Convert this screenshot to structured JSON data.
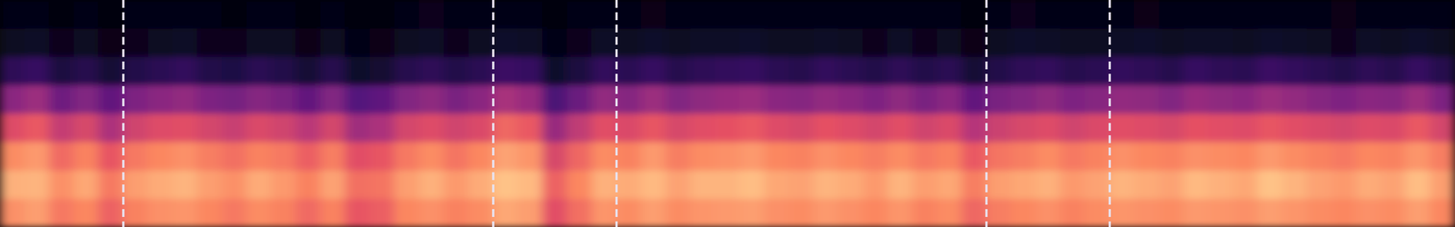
{
  "chart_data": {
    "type": "heatmap",
    "tick_labels": false,
    "xlim": [
      0,
      118
    ],
    "ylim": [
      0,
      8
    ],
    "x": [
      0,
      2,
      4,
      6,
      8,
      10,
      12,
      14,
      16,
      18,
      20,
      22,
      24,
      26,
      28,
      30,
      32,
      34,
      36,
      38,
      40,
      42,
      44,
      46,
      48,
      50,
      52,
      54,
      56,
      58,
      60,
      62,
      64,
      66,
      68,
      70,
      72,
      74,
      76,
      78,
      80,
      82,
      84,
      86,
      88,
      90,
      92,
      94,
      96,
      98,
      100,
      102,
      104,
      106,
      108,
      110,
      112,
      114,
      116
    ],
    "y": [
      0,
      1,
      2,
      3,
      4,
      5,
      6,
      7
    ],
    "value_range": [
      0,
      100
    ],
    "cells": [
      [
        77,
        80,
        72,
        75,
        67,
        74,
        77,
        78,
        75,
        72,
        76,
        74,
        69,
        74,
        64,
        66,
        75,
        77,
        74,
        76,
        82,
        80,
        62,
        70,
        78,
        76,
        80,
        76,
        78,
        79,
        80,
        77,
        76,
        79,
        77,
        75,
        78,
        74,
        76,
        68,
        73,
        75,
        77,
        74,
        76,
        78,
        77,
        76,
        79,
        78,
        77,
        80,
        78,
        76,
        75,
        77,
        76,
        80,
        75
      ],
      [
        84,
        85,
        77,
        82,
        72,
        80,
        83,
        85,
        80,
        77,
        83,
        79,
        74,
        81,
        70,
        71,
        80,
        84,
        79,
        83,
        88,
        86,
        67,
        75,
        84,
        83,
        86,
        81,
        85,
        85,
        87,
        82,
        81,
        85,
        83,
        79,
        85,
        80,
        82,
        73,
        80,
        82,
        84,
        79,
        81,
        85,
        83,
        81,
        86,
        84,
        82,
        88,
        85,
        81,
        79,
        83,
        81,
        87,
        80
      ],
      [
        76,
        79,
        69,
        74,
        64,
        72,
        75,
        77,
        73,
        70,
        74,
        72,
        66,
        73,
        62,
        64,
        72,
        76,
        71,
        75,
        81,
        78,
        59,
        68,
        76,
        74,
        79,
        73,
        76,
        77,
        79,
        75,
        74,
        77,
        75,
        73,
        76,
        72,
        74,
        65,
        71,
        73,
        76,
        72,
        74,
        77,
        75,
        74,
        77,
        76,
        75,
        79,
        76,
        74,
        72,
        75,
        74,
        78,
        73
      ],
      [
        61,
        65,
        54,
        59,
        48,
        57,
        61,
        62,
        58,
        55,
        60,
        57,
        51,
        58,
        45,
        48,
        58,
        61,
        57,
        60,
        68,
        65,
        43,
        53,
        62,
        60,
        64,
        59,
        62,
        63,
        65,
        61,
        59,
        63,
        61,
        58,
        62,
        57,
        60,
        50,
        56,
        59,
        61,
        57,
        60,
        62,
        61,
        59,
        63,
        62,
        61,
        64,
        62,
        60,
        58,
        61,
        60,
        65,
        58
      ],
      [
        40,
        44,
        33,
        38,
        30,
        37,
        40,
        42,
        37,
        35,
        39,
        36,
        30,
        38,
        26,
        29,
        38,
        41,
        36,
        40,
        47,
        43,
        24,
        32,
        42,
        39,
        44,
        38,
        41,
        43,
        44,
        40,
        39,
        42,
        40,
        37,
        41,
        36,
        40,
        30,
        36,
        38,
        41,
        37,
        39,
        42,
        41,
        38,
        43,
        41,
        40,
        44,
        42,
        39,
        37,
        40,
        39,
        44,
        37
      ],
      [
        17,
        19,
        12,
        15,
        10,
        14,
        16,
        18,
        14,
        13,
        16,
        14,
        10,
        15,
        8,
        9,
        15,
        17,
        14,
        16,
        20,
        19,
        8,
        12,
        18,
        16,
        19,
        15,
        17,
        18,
        19,
        16,
        15,
        18,
        16,
        14,
        17,
        14,
        16,
        10,
        14,
        17,
        18,
        15,
        16,
        18,
        17,
        15,
        19,
        17,
        16,
        20,
        18,
        16,
        14,
        17,
        15,
        19,
        15
      ],
      [
        6,
        7,
        5,
        6,
        4,
        5,
        6,
        7,
        5,
        5,
        6,
        6,
        4,
        6,
        3,
        4,
        6,
        7,
        5,
        6,
        8,
        7,
        3,
        5,
        7,
        6,
        8,
        6,
        7,
        7,
        8,
        6,
        6,
        7,
        6,
        5,
        7,
        5,
        6,
        4,
        6,
        8,
        7,
        6,
        6,
        7,
        8,
        6,
        7,
        7,
        6,
        8,
        7,
        6,
        5,
        7,
        6,
        8,
        6
      ],
      [
        3,
        3,
        2,
        3,
        2,
        3,
        3,
        3,
        3,
        2,
        3,
        3,
        2,
        3,
        2,
        2,
        3,
        5,
        3,
        3,
        3,
        3,
        2,
        3,
        3,
        3,
        4,
        3,
        3,
        3,
        3,
        3,
        3,
        3,
        3,
        3,
        3,
        3,
        3,
        2,
        3,
        5,
        3,
        3,
        3,
        3,
        4,
        3,
        3,
        3,
        3,
        3,
        3,
        3,
        4,
        3,
        3,
        3,
        3
      ]
    ],
    "vlines": [
      10,
      40,
      50,
      80,
      90
    ],
    "vline_color": "#e8e2f0",
    "line_style": "dashed"
  }
}
